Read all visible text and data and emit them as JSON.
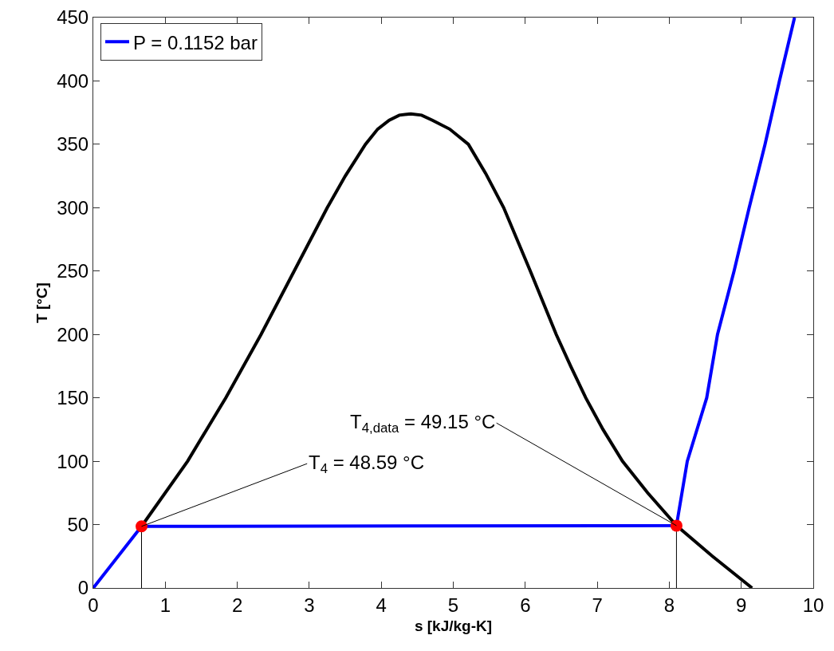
{
  "chart_data": {
    "type": "line",
    "xlabel": "s [kJ/kg-K]",
    "ylabel": "T [°C]",
    "xlim": [
      0,
      10
    ],
    "xticks": [
      0,
      1,
      2,
      3,
      4,
      5,
      6,
      7,
      8,
      9,
      10
    ],
    "ylim": [
      0,
      450
    ],
    "yticks": [
      0,
      50,
      100,
      150,
      200,
      250,
      300,
      350,
      400,
      450
    ],
    "grid": false,
    "legend": "top left",
    "marker": "none",
    "line_style": "solid",
    "series": [
      {
        "color": "#000000",
        "x": [
          0.67,
          1.31,
          1.84,
          2.33,
          2.79,
          3.25,
          3.5,
          3.78,
          3.95,
          4.11,
          4.25,
          4.41,
          4.56,
          4.71,
          4.95,
          5.21,
          5.45,
          5.7,
          6.07,
          6.25,
          6.43,
          6.63,
          6.84,
          7.08,
          7.35,
          7.7,
          8.1,
          8.6,
          9.15
        ],
        "values": [
          48.6,
          100,
          150,
          200,
          250,
          300,
          325,
          350,
          362,
          369,
          373,
          374,
          373,
          369,
          362,
          350,
          327,
          300,
          250,
          225,
          200,
          175,
          150,
          125,
          100,
          75,
          49.2,
          25,
          0
        ]
      },
      {
        "name": "P = 0.1152 bar",
        "color": "#0000ff",
        "x": [
          0,
          0.67,
          8.1,
          8.25,
          8.52,
          8.67,
          8.9,
          9.11,
          9.33,
          9.53,
          9.74
        ],
        "values": [
          0,
          48.6,
          49.2,
          100,
          150,
          200,
          250,
          300,
          350,
          400,
          450
        ]
      },
      {
        "type": "scatter",
        "marker": "circle",
        "color": "#ff0000",
        "x": [
          0.67,
          8.1
        ],
        "values": [
          48.59,
          49.15
        ],
        "errors": [
          [
            0,
            48.59
          ],
          [
            0,
            49.15
          ]
        ]
      }
    ],
    "annotations": [
      {
        "text": "T$_{4}$ = 48.59 °C",
        "x": 0.67,
        "y": 48.59
      },
      {
        "text": "T$_{4,data}$ = 49.15 °C",
        "x": 8.1,
        "y": 49.15
      }
    ]
  }
}
